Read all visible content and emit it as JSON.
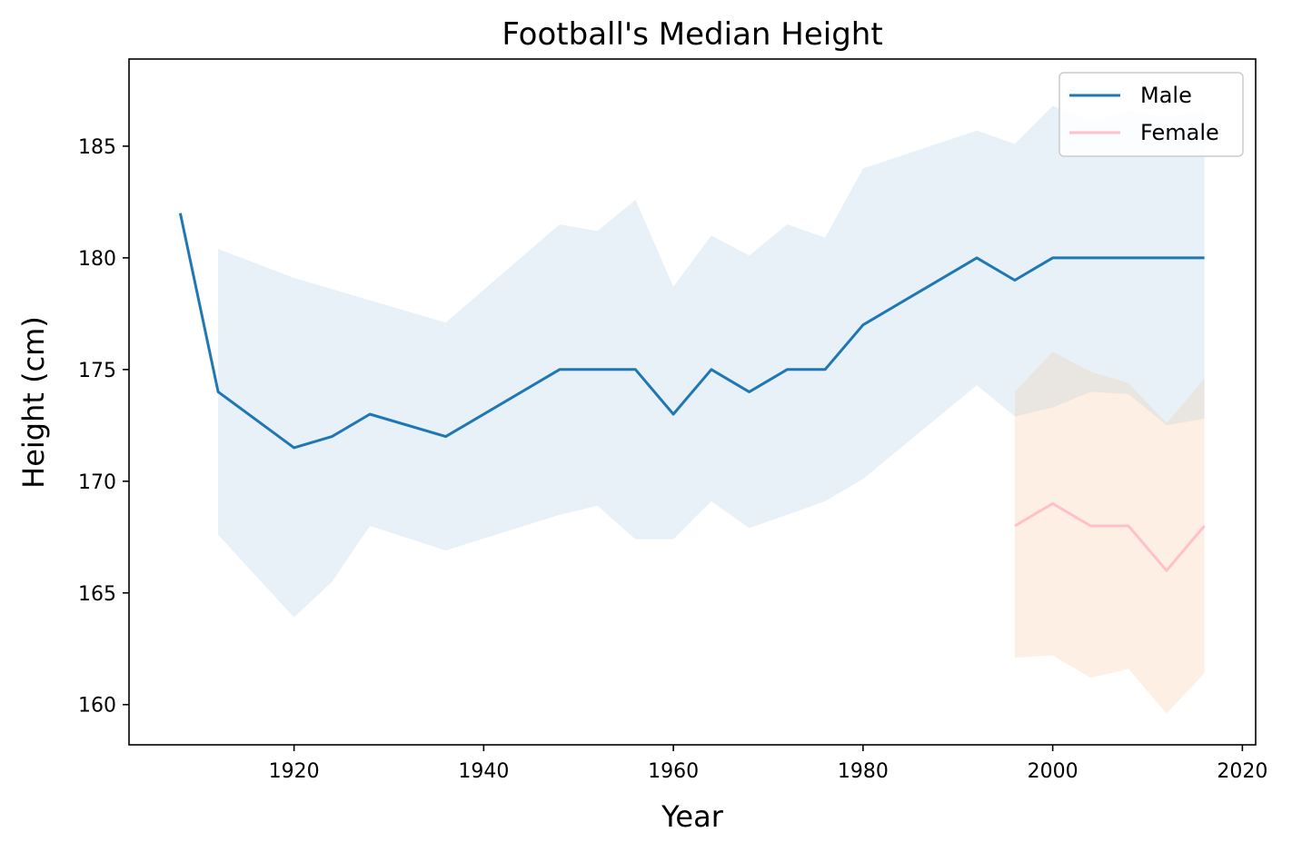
{
  "chart_data": {
    "type": "line",
    "title": "Football's Median Height",
    "xlabel": "Year",
    "ylabel": "Height (cm)",
    "xlim": [
      1902.6,
      2021.4
    ],
    "ylim": [
      158.2,
      188.9
    ],
    "x_ticks": [
      1920,
      1940,
      1960,
      1980,
      2000,
      2020
    ],
    "y_ticks": [
      160,
      165,
      170,
      175,
      180,
      185
    ],
    "grid": false,
    "legend_position": "top-right",
    "series": [
      {
        "name": "Male",
        "color": "#1f77b4",
        "band_color": "#e8f0f8",
        "x": [
          1908,
          1912,
          1920,
          1924,
          1928,
          1936,
          1948,
          1952,
          1956,
          1960,
          1964,
          1968,
          1972,
          1976,
          1980,
          1992,
          1996,
          2000,
          2004,
          2008,
          2012,
          2016
        ],
        "values": [
          182,
          174,
          171.5,
          172,
          173,
          172,
          175,
          175,
          175,
          173,
          175,
          174,
          175,
          175,
          177,
          180,
          179,
          180,
          180,
          180,
          180,
          180
        ],
        "band_x": [
          1912,
          1920,
          1924,
          1928,
          1936,
          1948,
          1952,
          1956,
          1960,
          1964,
          1968,
          1972,
          1976,
          1980,
          1992,
          1996,
          2000,
          2004,
          2008,
          2012,
          2016
        ],
        "band_upper": [
          180.4,
          179.1,
          178.6,
          178.1,
          177.1,
          181.5,
          181.2,
          182.6,
          178.7,
          181.0,
          180.1,
          181.5,
          180.9,
          184.0,
          185.7,
          185.1,
          186.8,
          186.1,
          186.6,
          186.3,
          186.6
        ],
        "band_lower": [
          167.6,
          163.9,
          165.5,
          168.0,
          166.9,
          168.5,
          168.9,
          167.4,
          167.4,
          169.1,
          167.9,
          168.5,
          169.1,
          170.1,
          174.3,
          172.9,
          173.3,
          174.0,
          173.9,
          172.5,
          172.8
        ]
      },
      {
        "name": "Female",
        "color": "#ffc0cb",
        "band_color": "#fdefe3",
        "x": [
          1996,
          2000,
          2004,
          2008,
          2012,
          2016
        ],
        "values": [
          168,
          169,
          168,
          168,
          166,
          168
        ],
        "band_x": [
          1996,
          2000,
          2004,
          2008,
          2012,
          2016
        ],
        "band_upper": [
          174.0,
          175.8,
          174.9,
          174.4,
          172.6,
          174.6
        ],
        "band_lower": [
          162.1,
          162.2,
          161.2,
          161.6,
          159.6,
          161.4
        ]
      }
    ],
    "overlap_color": "#e9e5e0"
  }
}
